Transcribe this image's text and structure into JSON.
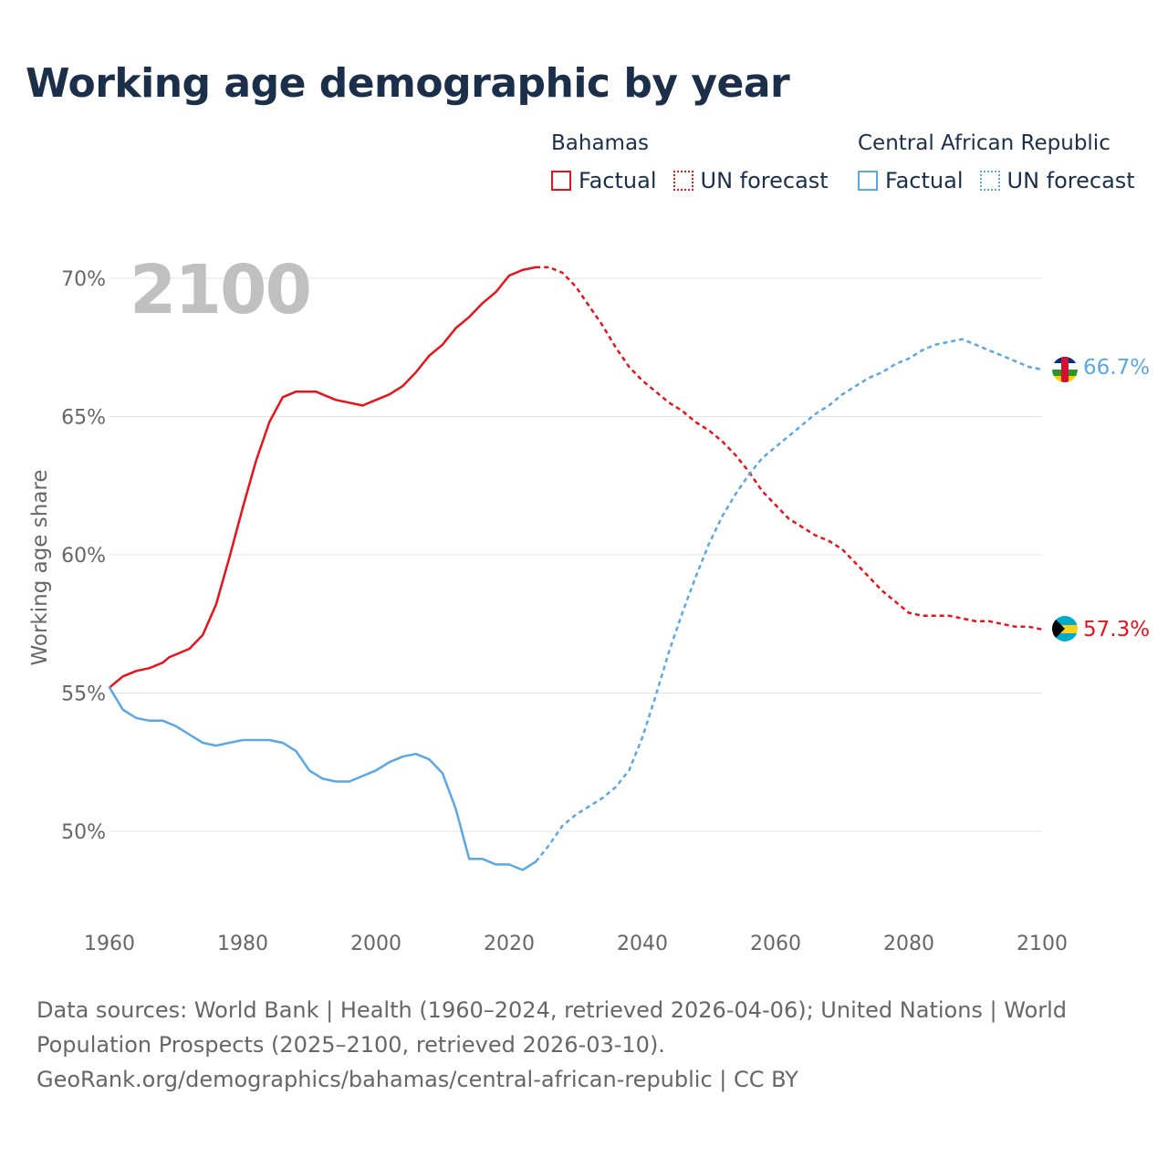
{
  "title": "Working age demographic by year",
  "year_watermark": "2100",
  "legend": {
    "groups": [
      {
        "name": "Bahamas",
        "color": "#e8131a",
        "factual_label": "Factual",
        "forecast_label": "UN forecast"
      },
      {
        "name": "Central African Republic",
        "color": "#5ba7e6",
        "factual_label": "Factual",
        "forecast_label": "UN forecast"
      }
    ]
  },
  "footer": {
    "line1": "Data sources: World Bank | Health (1960–2024, retrieved 2026-04-06); United Nations | World",
    "line2": "Population Prospects (2025–2100, retrieved 2026-03-10).",
    "line3": "GeoRank.org/demographics/bahamas/central-african-republic | CC BY"
  },
  "chart_data": {
    "type": "line",
    "title": "Working age demographic by year",
    "xlabel": "",
    "ylabel": "Working age share",
    "xlim": [
      1960,
      2100
    ],
    "ylim": [
      47,
      71
    ],
    "x_ticks": [
      1960,
      1980,
      2000,
      2020,
      2040,
      2060,
      2080,
      2100
    ],
    "x_tick_labels": [
      "1960",
      "1980",
      "2000",
      "2020",
      "2040",
      "2060",
      "2080",
      "2100"
    ],
    "y_ticks": [
      50,
      55,
      60,
      65,
      70
    ],
    "y_tick_labels": [
      "50%",
      "55%",
      "60%",
      "65%",
      "70%"
    ],
    "grid": true,
    "series": [
      {
        "name": "Bahamas",
        "color": "#e8131a",
        "end_label": "57.3%",
        "flag": "bahamas-flag",
        "factual": {
          "x": [
            1960,
            1962,
            1964,
            1966,
            1968,
            1969,
            1970,
            1972,
            1974,
            1976,
            1978,
            1980,
            1982,
            1984,
            1986,
            1988,
            1990,
            1991,
            1992,
            1994,
            1996,
            1998,
            2000,
            2002,
            2004,
            2006,
            2008,
            2010,
            2012,
            2014,
            2016,
            2018,
            2020,
            2022,
            2024
          ],
          "y": [
            55.2,
            55.6,
            55.8,
            55.9,
            56.1,
            56.3,
            56.4,
            56.6,
            57.1,
            58.2,
            59.9,
            61.7,
            63.4,
            64.8,
            65.7,
            65.9,
            65.9,
            65.9,
            65.8,
            65.6,
            65.5,
            65.4,
            65.6,
            65.8,
            66.1,
            66.6,
            67.2,
            67.6,
            68.2,
            68.6,
            69.1,
            69.5,
            70.1,
            70.3,
            70.4
          ]
        },
        "forecast": {
          "x": [
            2024,
            2026,
            2028,
            2030,
            2032,
            2034,
            2036,
            2038,
            2040,
            2042,
            2044,
            2046,
            2048,
            2050,
            2052,
            2054,
            2056,
            2058,
            2060,
            2062,
            2064,
            2066,
            2068,
            2070,
            2072,
            2074,
            2076,
            2078,
            2080,
            2082,
            2084,
            2086,
            2088,
            2090,
            2092,
            2094,
            2096,
            2098,
            2100
          ],
          "y": [
            70.4,
            70.4,
            70.2,
            69.7,
            69.0,
            68.3,
            67.5,
            66.8,
            66.3,
            65.9,
            65.5,
            65.2,
            64.8,
            64.5,
            64.1,
            63.6,
            63.0,
            62.3,
            61.8,
            61.3,
            61.0,
            60.7,
            60.5,
            60.2,
            59.7,
            59.2,
            58.7,
            58.3,
            57.9,
            57.8,
            57.8,
            57.8,
            57.7,
            57.6,
            57.6,
            57.5,
            57.4,
            57.4,
            57.3
          ]
        }
      },
      {
        "name": "Central African Republic",
        "color": "#5ba7e6",
        "end_label": "66.7%",
        "flag": "central-african-republic-flag",
        "factual": {
          "x": [
            1960,
            1962,
            1964,
            1966,
            1968,
            1970,
            1972,
            1974,
            1976,
            1978,
            1980,
            1982,
            1984,
            1986,
            1988,
            1990,
            1992,
            1994,
            1996,
            1998,
            2000,
            2002,
            2004,
            2006,
            2008,
            2010,
            2012,
            2014,
            2016,
            2018,
            2020,
            2022,
            2024
          ],
          "y": [
            55.2,
            54.4,
            54.1,
            54.0,
            54.0,
            53.8,
            53.5,
            53.2,
            53.1,
            53.2,
            53.3,
            53.3,
            53.3,
            53.2,
            52.9,
            52.2,
            51.9,
            51.8,
            51.8,
            52.0,
            52.2,
            52.5,
            52.7,
            52.8,
            52.6,
            52.1,
            50.8,
            49.0,
            49.0,
            48.8,
            48.8,
            48.6,
            48.9
          ]
        },
        "forecast": {
          "x": [
            2024,
            2026,
            2028,
            2030,
            2032,
            2034,
            2036,
            2038,
            2040,
            2042,
            2044,
            2046,
            2048,
            2050,
            2052,
            2054,
            2056,
            2058,
            2060,
            2062,
            2064,
            2066,
            2068,
            2070,
            2072,
            2074,
            2076,
            2078,
            2080,
            2082,
            2084,
            2086,
            2088,
            2090,
            2092,
            2094,
            2096,
            2098,
            2100
          ],
          "y": [
            48.9,
            49.5,
            50.2,
            50.6,
            50.9,
            51.2,
            51.6,
            52.2,
            53.4,
            54.9,
            56.5,
            57.9,
            59.2,
            60.4,
            61.4,
            62.2,
            62.9,
            63.5,
            63.9,
            64.3,
            64.7,
            65.1,
            65.4,
            65.8,
            66.1,
            66.4,
            66.6,
            66.9,
            67.1,
            67.4,
            67.6,
            67.7,
            67.8,
            67.6,
            67.4,
            67.2,
            67.0,
            66.8,
            66.7
          ]
        }
      }
    ]
  }
}
